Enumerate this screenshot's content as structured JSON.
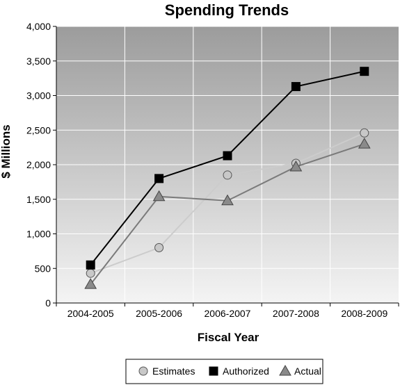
{
  "chart_data": {
    "type": "line",
    "title": "Spending Trends",
    "xlabel": "Fiscal Year",
    "ylabel": "$ Millions",
    "categories": [
      "2004-2005",
      "2005-2006",
      "2006-2007",
      "2007-2008",
      "2008-2009"
    ],
    "ylim": [
      0,
      4000
    ],
    "yticks": [
      0,
      500,
      1000,
      1500,
      2000,
      2500,
      3000,
      3500,
      4000
    ],
    "ytick_labels": [
      "0",
      "500",
      "1,000",
      "1,500",
      "2,000",
      "2,500",
      "3,000",
      "3,500",
      "4,000"
    ],
    "grid": true,
    "legend_position": "bottom",
    "series": [
      {
        "name": "Estimates",
        "marker": "circle",
        "color": "#cccccc",
        "marker_color": "#c8c8c8",
        "values": [
          430,
          800,
          1850,
          2020,
          2460
        ]
      },
      {
        "name": "Authorized",
        "marker": "square",
        "color": "#000000",
        "marker_color": "#000000",
        "values": [
          550,
          1800,
          2130,
          3130,
          3350
        ]
      },
      {
        "name": "Actual",
        "marker": "triangle",
        "color": "#7a7a7a",
        "marker_color": "#8a8a8a",
        "values": [
          270,
          1540,
          1480,
          1970,
          2300
        ]
      }
    ],
    "legend_order": [
      0,
      1,
      2
    ]
  }
}
